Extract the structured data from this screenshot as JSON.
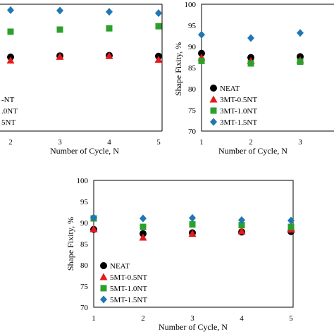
{
  "chart_data": [
    {
      "type": "scatter",
      "xlabel": "Number of Cycle, N",
      "ylabel": "",
      "xlim": [
        1,
        5
      ],
      "ylim": [
        70,
        100
      ],
      "x_ticks": [
        2,
        3,
        4,
        5
      ],
      "y_ticks": [],
      "grid": false,
      "legend_placement": "bottom-left",
      "series": [
        {
          "name": "",
          "marker": "circle",
          "color": "#000000",
          "x": [
            2,
            3,
            4,
            5
          ],
          "y": [
            87.5,
            87.8,
            87.9,
            87.7
          ]
        },
        {
          "name": "",
          "marker": "triangle",
          "color": "#e31a1c",
          "x": [
            2,
            3,
            4,
            5
          ],
          "y": [
            86.7,
            87.6,
            87.8,
            86.9
          ]
        },
        {
          "name": "",
          "marker": "square",
          "color": "#2ca02c",
          "x": [
            2,
            3,
            4,
            5
          ],
          "y": [
            93.5,
            94.0,
            94.3,
            94.8
          ]
        },
        {
          "name": "",
          "marker": "diamond",
          "color": "#1f77b4",
          "x": [
            2,
            3,
            4,
            5
          ],
          "y": [
            98.6,
            98.5,
            98.2,
            97.9
          ]
        }
      ],
      "legend_labels": [
        "-NT",
        ".0NT",
        "5NT"
      ]
    },
    {
      "type": "scatter",
      "xlabel": "Number of Cycle, N",
      "ylabel": "Shape Fixity, %",
      "xlim": [
        1,
        4
      ],
      "ylim": [
        70,
        100
      ],
      "x_ticks": [
        1,
        2,
        3
      ],
      "y_ticks": [
        70,
        75,
        80,
        85,
        90,
        95,
        100
      ],
      "grid": false,
      "legend_placement": "bottom-left",
      "series": [
        {
          "name": "NEAT",
          "marker": "circle",
          "color": "#000000",
          "x": [
            1,
            2,
            3
          ],
          "y": [
            88.4,
            87.4,
            87.6
          ]
        },
        {
          "name": "3MT-0.5NT",
          "marker": "triangle",
          "color": "#e31a1c",
          "x": [
            1,
            2,
            3
          ],
          "y": [
            87.4,
            86.6,
            86.8
          ]
        },
        {
          "name": "3MT-1.0NT",
          "marker": "square",
          "color": "#2ca02c",
          "x": [
            1,
            2,
            3
          ],
          "y": [
            86.6,
            86.0,
            86.4
          ]
        },
        {
          "name": "3MT-1.5NT",
          "marker": "diamond",
          "color": "#1f77b4",
          "x": [
            1,
            2,
            3
          ],
          "y": [
            92.8,
            92.0,
            93.2
          ]
        }
      ]
    },
    {
      "type": "scatter",
      "xlabel": "Number of Cycle, N",
      "ylabel": "Shape Fixity, %",
      "xlim": [
        1,
        5
      ],
      "ylim": [
        70,
        100
      ],
      "x_ticks": [
        1,
        2,
        3,
        4,
        5
      ],
      "y_ticks": [
        70,
        75,
        80,
        85,
        90,
        95,
        100
      ],
      "grid": false,
      "legend_placement": "bottom-left",
      "series": [
        {
          "name": "NEAT",
          "marker": "circle",
          "color": "#000000",
          "x": [
            1,
            2,
            3,
            4,
            5
          ],
          "y": [
            88.4,
            87.4,
            87.6,
            87.8,
            87.9
          ]
        },
        {
          "name": "5MT-0.5NT",
          "marker": "triangle",
          "color": "#e31a1c",
          "x": [
            1,
            2,
            3,
            4,
            5
          ],
          "y": [
            88.5,
            86.5,
            87.4,
            88.0,
            88.4
          ]
        },
        {
          "name": "5MT-1.0NT",
          "marker": "square",
          "color": "#2ca02c",
          "x": [
            1,
            2,
            3,
            4,
            5
          ],
          "y": [
            91.0,
            89.0,
            89.6,
            89.4,
            89.0
          ]
        },
        {
          "name": "5MT-1.5NT",
          "marker": "diamond",
          "color": "#1f77b4",
          "x": [
            1,
            2,
            3,
            4,
            5
          ],
          "y": [
            91.2,
            91.0,
            91.1,
            90.6,
            90.5
          ]
        }
      ]
    }
  ]
}
